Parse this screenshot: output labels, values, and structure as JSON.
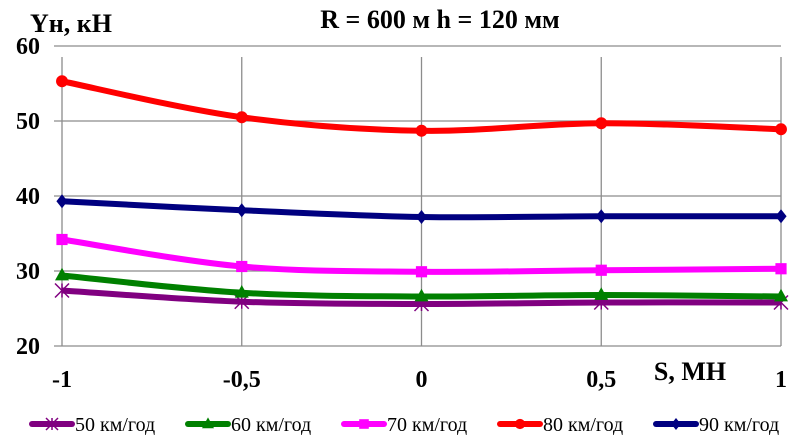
{
  "chart_data": {
    "type": "line",
    "title": "R = 600 м  h = 120 мм",
    "xlabel": "S, МН",
    "ylabel": "Yн, кН",
    "x": [
      -1,
      -0.5,
      0,
      0.5,
      1
    ],
    "x_tick_labels": [
      "-1",
      "-0,5",
      "0",
      "0,5",
      "1"
    ],
    "y_tick_labels": [
      "20",
      "30",
      "40",
      "50",
      "60"
    ],
    "y_ticks": [
      20,
      30,
      40,
      50,
      60
    ],
    "xlim": [
      -1,
      1
    ],
    "ylim": [
      20,
      60
    ],
    "grid": true,
    "legend_position": "bottom",
    "series": [
      {
        "name": "50 км/год",
        "color": "#800080",
        "marker": "star",
        "values": [
          27.4,
          25.9,
          25.6,
          25.8,
          25.8
        ]
      },
      {
        "name": "60 км/год",
        "color": "#008000",
        "marker": "triangle",
        "values": [
          29.4,
          27.1,
          26.6,
          26.8,
          26.6
        ]
      },
      {
        "name": "70 км/год",
        "color": "#ff00ff",
        "marker": "square",
        "values": [
          34.2,
          30.6,
          29.9,
          30.1,
          30.3
        ]
      },
      {
        "name": "80 км/год",
        "color": "#ff0000",
        "marker": "circle",
        "values": [
          55.3,
          50.5,
          48.7,
          49.7,
          48.9
        ]
      },
      {
        "name": "90 км/год",
        "color": "#000080",
        "marker": "diamond",
        "values": [
          39.3,
          38.1,
          37.2,
          37.3,
          37.3
        ]
      }
    ]
  }
}
